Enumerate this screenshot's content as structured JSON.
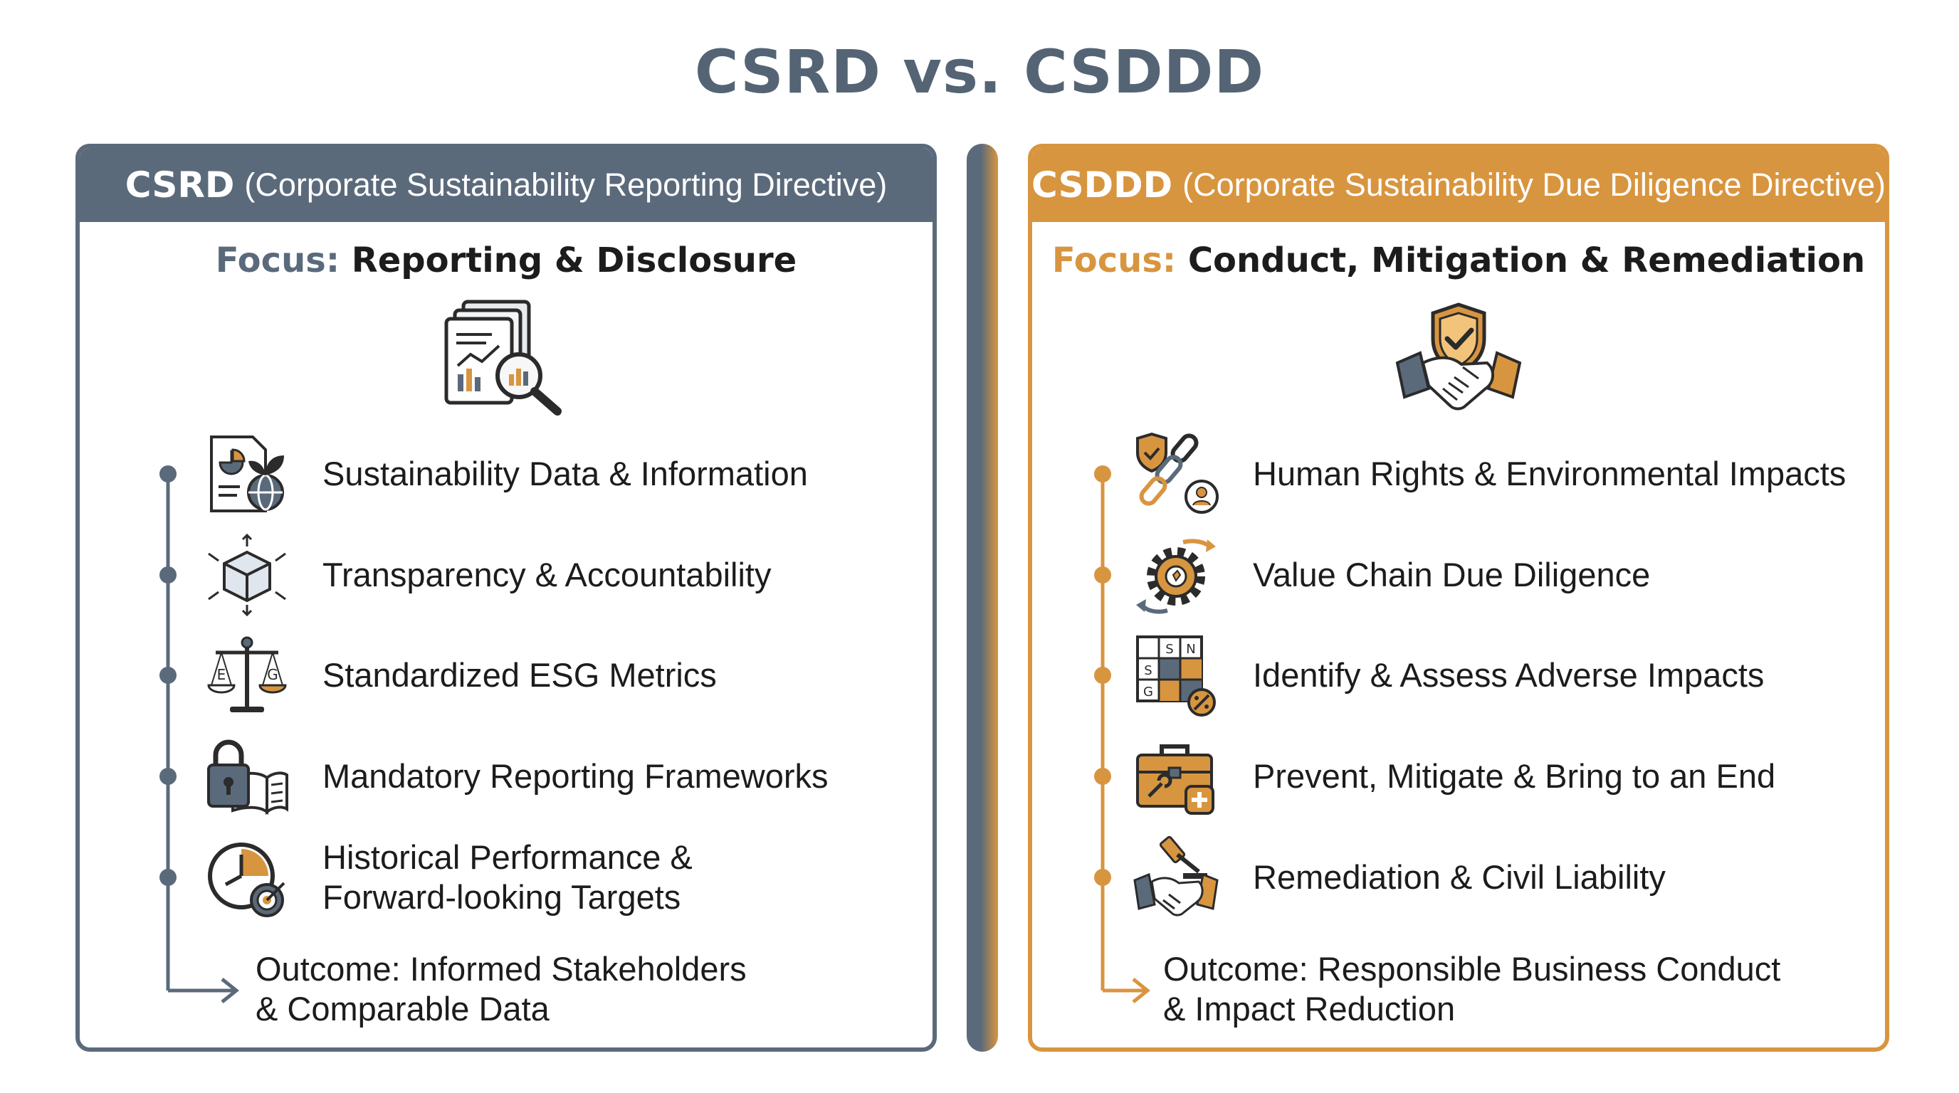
{
  "title": "CSRD vs. CSDDD",
  "colors": {
    "slate": "#5b6a7b",
    "amber": "#d8953f",
    "text": "#1c1c1c"
  },
  "left": {
    "abbr": "CSRD",
    "full": "(Corporate Sustainability Reporting Directive)",
    "focus_label": "Focus:",
    "focus_value": "Reporting & Disclosure",
    "hero_icon": "report-magnifier-icon",
    "items": [
      {
        "icon": "report-globe-icon",
        "label": "Sustainability Data & Information"
      },
      {
        "icon": "transparent-cube-icon",
        "label": "Transparency & Accountability"
      },
      {
        "icon": "balance-scale-icon",
        "label": "Standardized ESG Metrics"
      },
      {
        "icon": "lock-book-icon",
        "label": "Mandatory Reporting Frameworks"
      },
      {
        "icon": "clock-target-icon",
        "label": "Historical Performance &\nForward-looking Targets"
      }
    ],
    "outcome": "Outcome: Informed Stakeholders\n& Comparable Data"
  },
  "right": {
    "abbr": "CSDDD",
    "full": "(Corporate Sustainability Due Diligence Directive)",
    "focus_label": "Focus:",
    "focus_value": "Conduct, Mitigation & Remediation",
    "hero_icon": "shield-handshake-icon",
    "items": [
      {
        "icon": "shield-chain-person-icon",
        "label": "Human Rights & Environmental Impacts"
      },
      {
        "icon": "gear-cycle-icon",
        "label": "Value Chain Due Diligence"
      },
      {
        "icon": "risk-matrix-icon",
        "label": "Identify & Assess Adverse Impacts"
      },
      {
        "icon": "toolbox-icon",
        "label": "Prevent, Mitigate & Bring to an End"
      },
      {
        "icon": "gavel-handshake-icon",
        "label": "Remediation & Civil Liability"
      }
    ],
    "outcome": "Outcome: Responsible Business Conduct\n& Impact Reduction"
  },
  "matrix_letters": {
    "e": "E",
    "s": "S",
    "g": "G",
    "n": "N"
  }
}
